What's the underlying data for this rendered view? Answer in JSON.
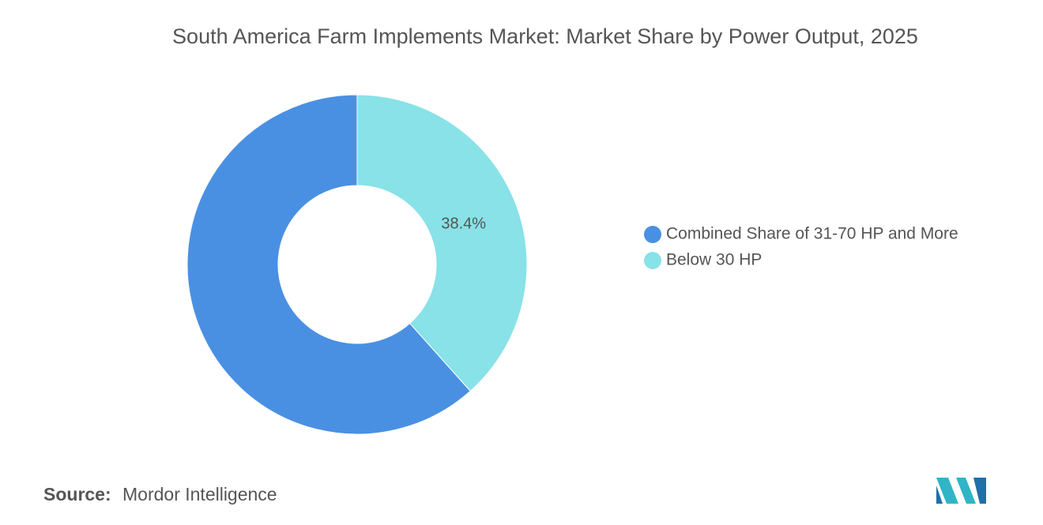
{
  "chart_data": {
    "type": "donut",
    "title": "South America Farm Implements Market: Market Share by Power Output, 2025",
    "categories": [
      "Combined Share of 31-70 HP and More",
      "Below 30 HP"
    ],
    "values": [
      61.6,
      38.4
    ],
    "value_labels": [
      null,
      "38.4%"
    ],
    "colors": [
      "#4a90e2",
      "#88e2e7"
    ],
    "legend": "right"
  },
  "footer": {
    "source_label": "Source:",
    "source": "Mordor Intelligence"
  }
}
